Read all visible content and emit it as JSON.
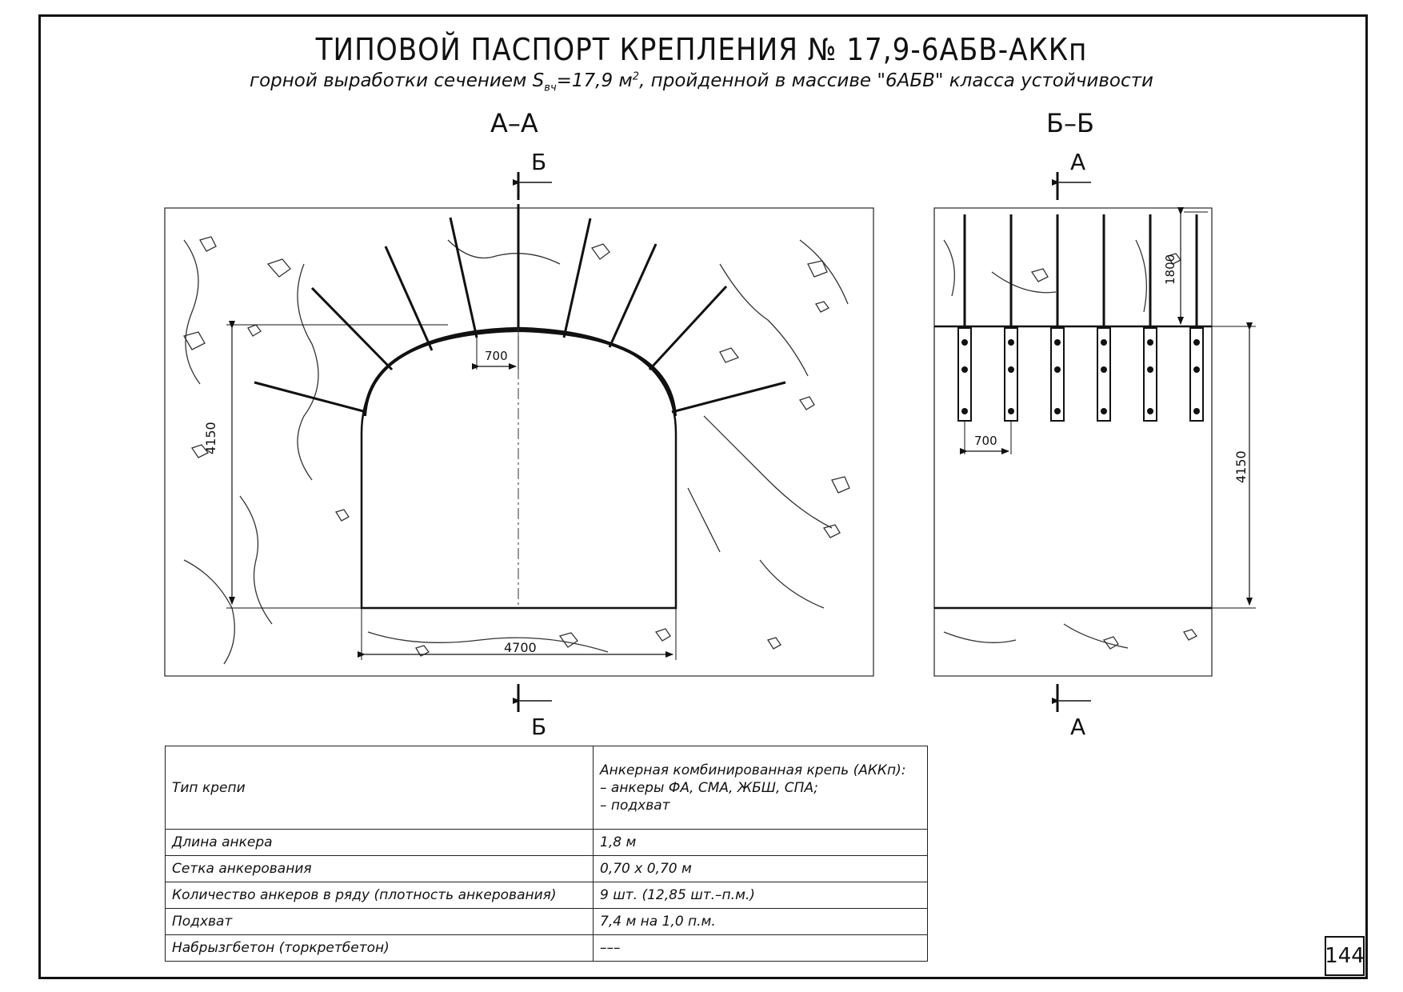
{
  "title": "ТИПОВОЙ ПАСПОРТ КРЕПЛЕНИЯ № 17,9-6АБВ-АККп",
  "subtitle": {
    "prefix": "горной выработки сечением S",
    "sub": "вч",
    "mid": "=17,9 м",
    "sup": "2",
    "suffix": ", пройденной в массиве \"6АБВ\" класса устойчивости"
  },
  "sections": {
    "aa": {
      "title": "А–А",
      "cut_label_top": "Б",
      "cut_label_bottom": "Б",
      "dim_height": "4150",
      "dim_width": "4700",
      "dim_spacing": "700"
    },
    "bb": {
      "title": "Б–Б",
      "cut_label_top": "А",
      "cut_label_bottom": "А",
      "dim_height": "4150",
      "dim_anchor": "1800",
      "dim_spacing": "700"
    }
  },
  "spec_table": {
    "rows": [
      {
        "key": "Тип крепи",
        "value_lines": [
          "Анкерная комбинированная крепь (АККп):",
          " – анкеры ФА, СМА, ЖБШ, СПА;",
          " – подхват"
        ]
      },
      {
        "key": "Длина анкера",
        "value_lines": [
          "1,8 м"
        ]
      },
      {
        "key": "Сетка анкерования",
        "value_lines": [
          "0,70 х 0,70 м"
        ]
      },
      {
        "key": "Количество анкеров в ряду (плотность анкерования)",
        "value_lines": [
          "9 шт. (12,85 шт.–п.м.)"
        ]
      },
      {
        "key": "Подхват",
        "value_lines": [
          "7,4 м на 1,0 п.м."
        ]
      },
      {
        "key": "Набрызгбетон (торкретбетон)",
        "value_lines": [
          "–––"
        ]
      }
    ]
  },
  "page_number": "144"
}
